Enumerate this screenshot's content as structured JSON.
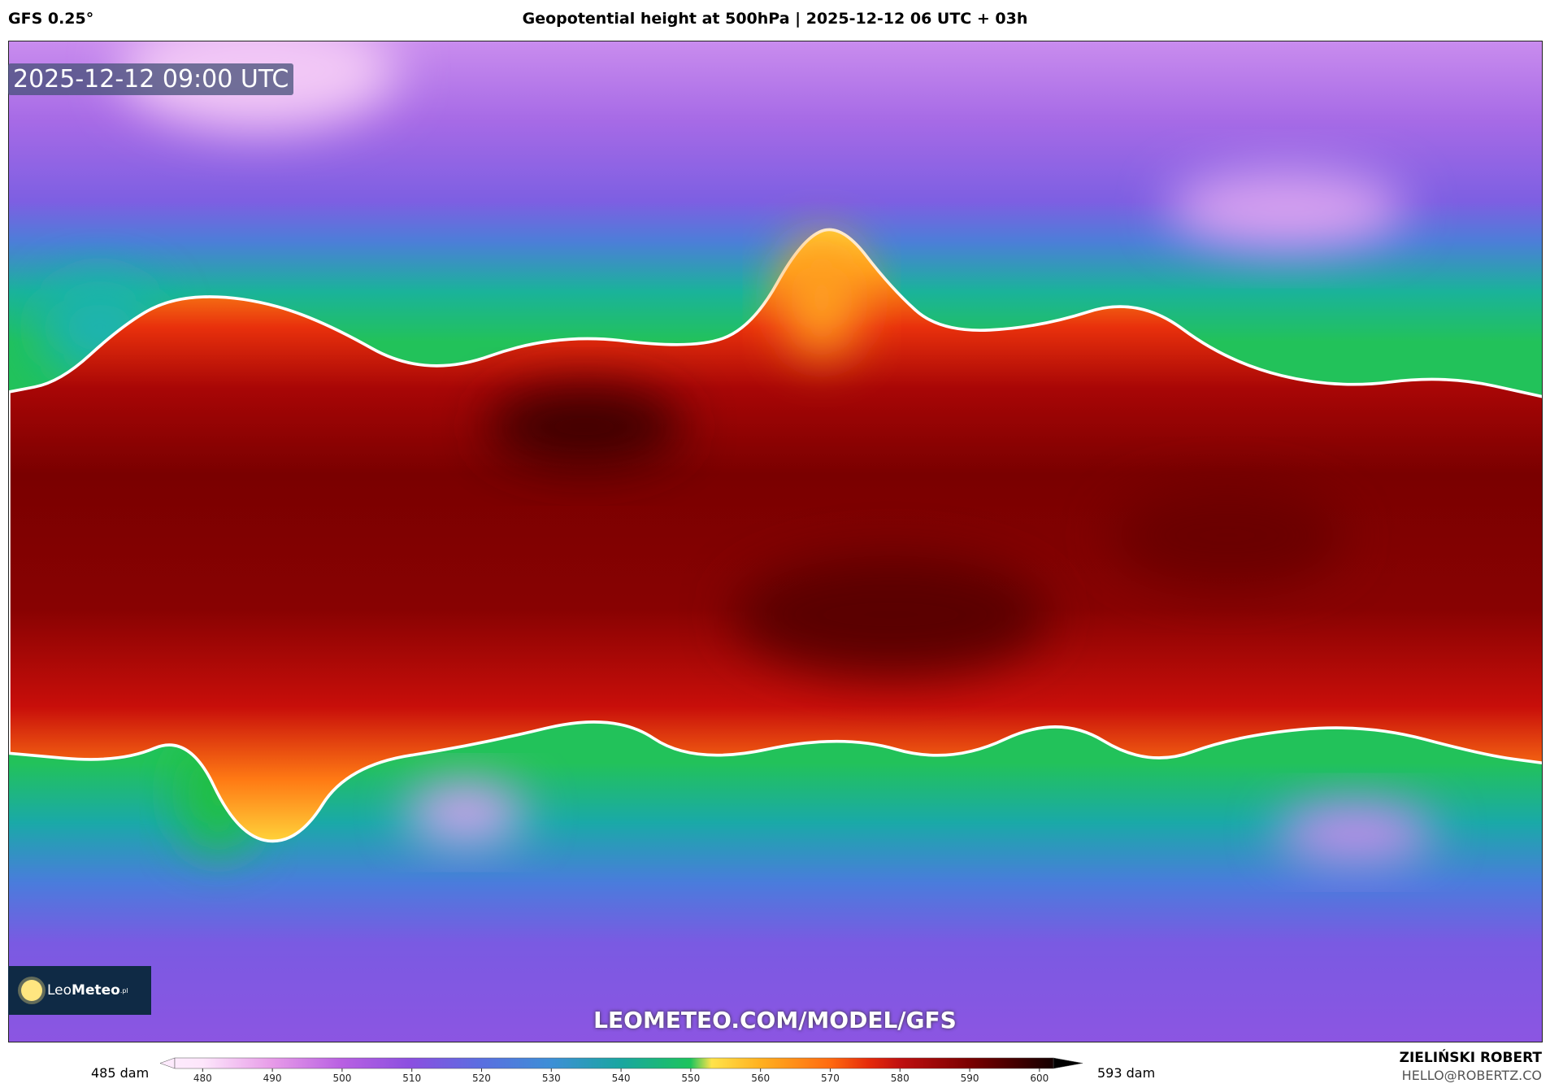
{
  "header": {
    "model": "GFS 0.25°",
    "title": "Geopotential height at 500hPa | 2025-12-12 06 UTC + 03h"
  },
  "map": {
    "timestamp": "2025-12-12 09:00 UTC",
    "logo": {
      "name_light": "Leo",
      "name_bold": "Meteo",
      "suffix": ".pl"
    },
    "watermark": "LEOMETEO.COM/MODEL/GFS"
  },
  "colorbar": {
    "min_label": "485 dam",
    "max_label": "593 dam",
    "lim": [
      476,
      602
    ],
    "ticks": [
      480,
      490,
      500,
      510,
      520,
      530,
      540,
      550,
      560,
      570,
      580,
      590,
      600
    ]
  },
  "credit": {
    "author": "ZIELIŃSKI ROBERT",
    "email": "HELLO@ROBERTZ.CO"
  }
}
